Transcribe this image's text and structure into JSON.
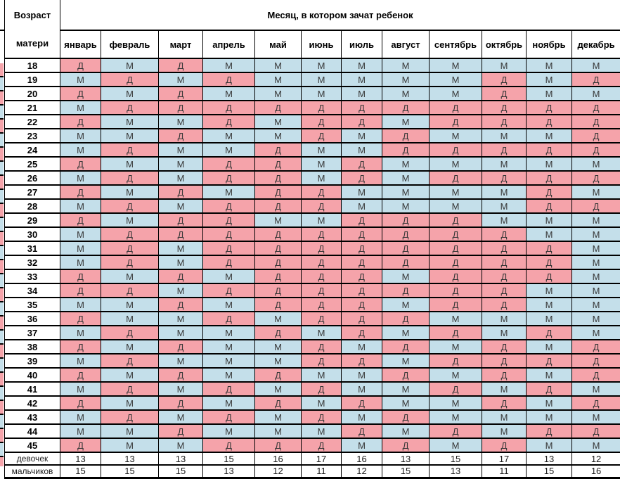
{
  "chart_data": {
    "type": "table",
    "corner_header_line1": "Возраст",
    "corner_header_line2": "матери",
    "months_header": "Месяц, в котором зачат ребенок",
    "columns": [
      "январь",
      "февраль",
      "март",
      "апрель",
      "май",
      "июнь",
      "июль",
      "август",
      "сентябрь",
      "октябрь",
      "ноябрь",
      "декабрь"
    ],
    "girl_letter": "Д",
    "boy_letter": "М",
    "girl_color": "#F5A3AA",
    "boy_color": "#C4DFEA",
    "rows": [
      {
        "age": "18",
        "values": [
          "Д",
          "М",
          "Д",
          "М",
          "М",
          "М",
          "М",
          "М",
          "М",
          "М",
          "М",
          "М"
        ]
      },
      {
        "age": "19",
        "values": [
          "М",
          "Д",
          "М",
          "Д",
          "М",
          "М",
          "М",
          "М",
          "М",
          "Д",
          "М",
          "Д"
        ]
      },
      {
        "age": "20",
        "values": [
          "Д",
          "М",
          "Д",
          "М",
          "М",
          "М",
          "М",
          "М",
          "М",
          "Д",
          "М",
          "М"
        ]
      },
      {
        "age": "21",
        "values": [
          "М",
          "Д",
          "Д",
          "Д",
          "Д",
          "Д",
          "Д",
          "Д",
          "Д",
          "Д",
          "Д",
          "Д"
        ]
      },
      {
        "age": "22",
        "values": [
          "Д",
          "М",
          "М",
          "Д",
          "М",
          "Д",
          "Д",
          "М",
          "Д",
          "Д",
          "Д",
          "Д"
        ]
      },
      {
        "age": "23",
        "values": [
          "М",
          "М",
          "Д",
          "М",
          "М",
          "Д",
          "М",
          "Д",
          "М",
          "М",
          "М",
          "Д"
        ]
      },
      {
        "age": "24",
        "values": [
          "М",
          "Д",
          "М",
          "М",
          "Д",
          "М",
          "М",
          "Д",
          "Д",
          "Д",
          "Д",
          "Д"
        ]
      },
      {
        "age": "25",
        "values": [
          "Д",
          "М",
          "М",
          "Д",
          "Д",
          "М",
          "Д",
          "М",
          "М",
          "М",
          "М",
          "М"
        ]
      },
      {
        "age": "26",
        "values": [
          "М",
          "Д",
          "М",
          "Д",
          "Д",
          "М",
          "Д",
          "М",
          "Д",
          "Д",
          "Д",
          "Д"
        ]
      },
      {
        "age": "27",
        "values": [
          "Д",
          "М",
          "Д",
          "М",
          "Д",
          "Д",
          "М",
          "М",
          "М",
          "М",
          "Д",
          "М"
        ]
      },
      {
        "age": "28",
        "values": [
          "М",
          "Д",
          "М",
          "Д",
          "Д",
          "Д",
          "М",
          "М",
          "М",
          "М",
          "Д",
          "Д"
        ]
      },
      {
        "age": "29",
        "values": [
          "Д",
          "М",
          "Д",
          "Д",
          "М",
          "М",
          "Д",
          "Д",
          "Д",
          "М",
          "М",
          "М"
        ]
      },
      {
        "age": "30",
        "values": [
          "М",
          "Д",
          "Д",
          "Д",
          "Д",
          "Д",
          "Д",
          "Д",
          "Д",
          "Д",
          "М",
          "М"
        ]
      },
      {
        "age": "31",
        "values": [
          "М",
          "Д",
          "М",
          "Д",
          "Д",
          "Д",
          "Д",
          "Д",
          "Д",
          "Д",
          "Д",
          "М"
        ]
      },
      {
        "age": "32",
        "values": [
          "М",
          "Д",
          "М",
          "Д",
          "Д",
          "Д",
          "Д",
          "Д",
          "Д",
          "Д",
          "Д",
          "М"
        ]
      },
      {
        "age": "33",
        "values": [
          "Д",
          "М",
          "Д",
          "М",
          "Д",
          "Д",
          "Д",
          "М",
          "Д",
          "Д",
          "Д",
          "М"
        ]
      },
      {
        "age": "34",
        "values": [
          "Д",
          "Д",
          "М",
          "Д",
          "Д",
          "Д",
          "Д",
          "Д",
          "Д",
          "Д",
          "М",
          "М"
        ]
      },
      {
        "age": "35",
        "values": [
          "М",
          "М",
          "Д",
          "М",
          "Д",
          "Д",
          "Д",
          "М",
          "Д",
          "Д",
          "М",
          "М"
        ]
      },
      {
        "age": "36",
        "values": [
          "Д",
          "М",
          "М",
          "Д",
          "М",
          "Д",
          "Д",
          "Д",
          "М",
          "М",
          "М",
          "М"
        ]
      },
      {
        "age": "37",
        "values": [
          "М",
          "Д",
          "М",
          "М",
          "Д",
          "М",
          "Д",
          "М",
          "Д",
          "М",
          "Д",
          "М"
        ]
      },
      {
        "age": "38",
        "values": [
          "Д",
          "М",
          "Д",
          "М",
          "М",
          "Д",
          "М",
          "Д",
          "М",
          "Д",
          "М",
          "Д"
        ]
      },
      {
        "age": "39",
        "values": [
          "М",
          "Д",
          "М",
          "М",
          "М",
          "Д",
          "Д",
          "М",
          "Д",
          "Д",
          "Д",
          "Д"
        ]
      },
      {
        "age": "40",
        "values": [
          "Д",
          "М",
          "Д",
          "М",
          "Д",
          "М",
          "М",
          "Д",
          "М",
          "Д",
          "М",
          "Д"
        ]
      },
      {
        "age": "41",
        "values": [
          "М",
          "Д",
          "М",
          "Д",
          "М",
          "Д",
          "М",
          "М",
          "Д",
          "М",
          "Д",
          "М"
        ]
      },
      {
        "age": "42",
        "values": [
          "Д",
          "М",
          "Д",
          "М",
          "Д",
          "М",
          "Д",
          "М",
          "М",
          "Д",
          "М",
          "Д"
        ]
      },
      {
        "age": "43",
        "values": [
          "М",
          "Д",
          "М",
          "Д",
          "М",
          "Д",
          "М",
          "Д",
          "М",
          "М",
          "М",
          "М"
        ]
      },
      {
        "age": "44",
        "values": [
          "М",
          "М",
          "Д",
          "М",
          "М",
          "М",
          "Д",
          "М",
          "Д",
          "М",
          "Д",
          "Д"
        ]
      },
      {
        "age": "45",
        "values": [
          "Д",
          "М",
          "М",
          "Д",
          "Д",
          "Д",
          "М",
          "Д",
          "М",
          "Д",
          "М",
          "М"
        ]
      }
    ],
    "summary": [
      {
        "label": "девочек",
        "values": [
          "13",
          "13",
          "13",
          "15",
          "16",
          "17",
          "16",
          "13",
          "15",
          "17",
          "13",
          "12"
        ]
      },
      {
        "label": "мальчиков",
        "values": [
          "15",
          "15",
          "15",
          "13",
          "12",
          "11",
          "12",
          "15",
          "13",
          "11",
          "15",
          "16"
        ]
      }
    ]
  }
}
